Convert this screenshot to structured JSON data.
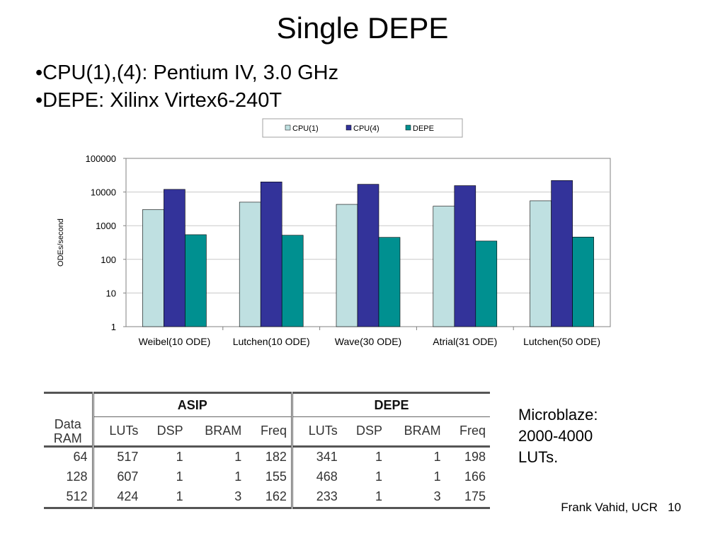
{
  "slide": {
    "title": "Single DEPE",
    "bullets": [
      "CPU(1),(4): Pentium IV, 3.0 GHz",
      "DEPE: Xilinx Virtex6-240T"
    ],
    "footer": {
      "author": "Frank Vahid, UCR",
      "page": "10"
    }
  },
  "note": {
    "lines": [
      "Microblaze:",
      "2000-4000",
      "LUTs."
    ]
  },
  "chart_data": {
    "type": "bar",
    "log_scale": true,
    "ylabel": "ODEs/second",
    "ylim": [
      1,
      100000
    ],
    "y_ticks": [
      "100000",
      "10000",
      "1000",
      "100",
      "10",
      "1"
    ],
    "categories": [
      "Weibel(10 ODE)",
      "Lutchen(10 ODE)",
      "Wave(30 ODE)",
      "Atrial(31 ODE)",
      "Lutchen(50 ODE)"
    ],
    "series": [
      {
        "name": "CPU(1)",
        "color": "#bfe0e1",
        "values": [
          3000,
          5000,
          4300,
          3800,
          5500
        ]
      },
      {
        "name": "CPU(4)",
        "color": "#33339a",
        "values": [
          12000,
          20000,
          17000,
          15500,
          22000
        ]
      },
      {
        "name": "DEPE",
        "color": "#009090",
        "values": [
          540,
          520,
          450,
          350,
          460
        ]
      }
    ],
    "grid": true,
    "legend": "top"
  },
  "table": {
    "groups": [
      "ASIP",
      "DEPE"
    ],
    "first_header": [
      "Data",
      "RAM"
    ],
    "columns": [
      "LUTs",
      "DSP",
      "BRAM",
      "Freq",
      "LUTs",
      "DSP",
      "BRAM",
      "Freq"
    ],
    "rows": [
      [
        "64",
        "517",
        "1",
        "1",
        "182",
        "341",
        "1",
        "1",
        "198"
      ],
      [
        "128",
        "607",
        "1",
        "1",
        "155",
        "468",
        "1",
        "1",
        "166"
      ],
      [
        "512",
        "424",
        "1",
        "3",
        "162",
        "233",
        "1",
        "3",
        "175"
      ]
    ]
  }
}
